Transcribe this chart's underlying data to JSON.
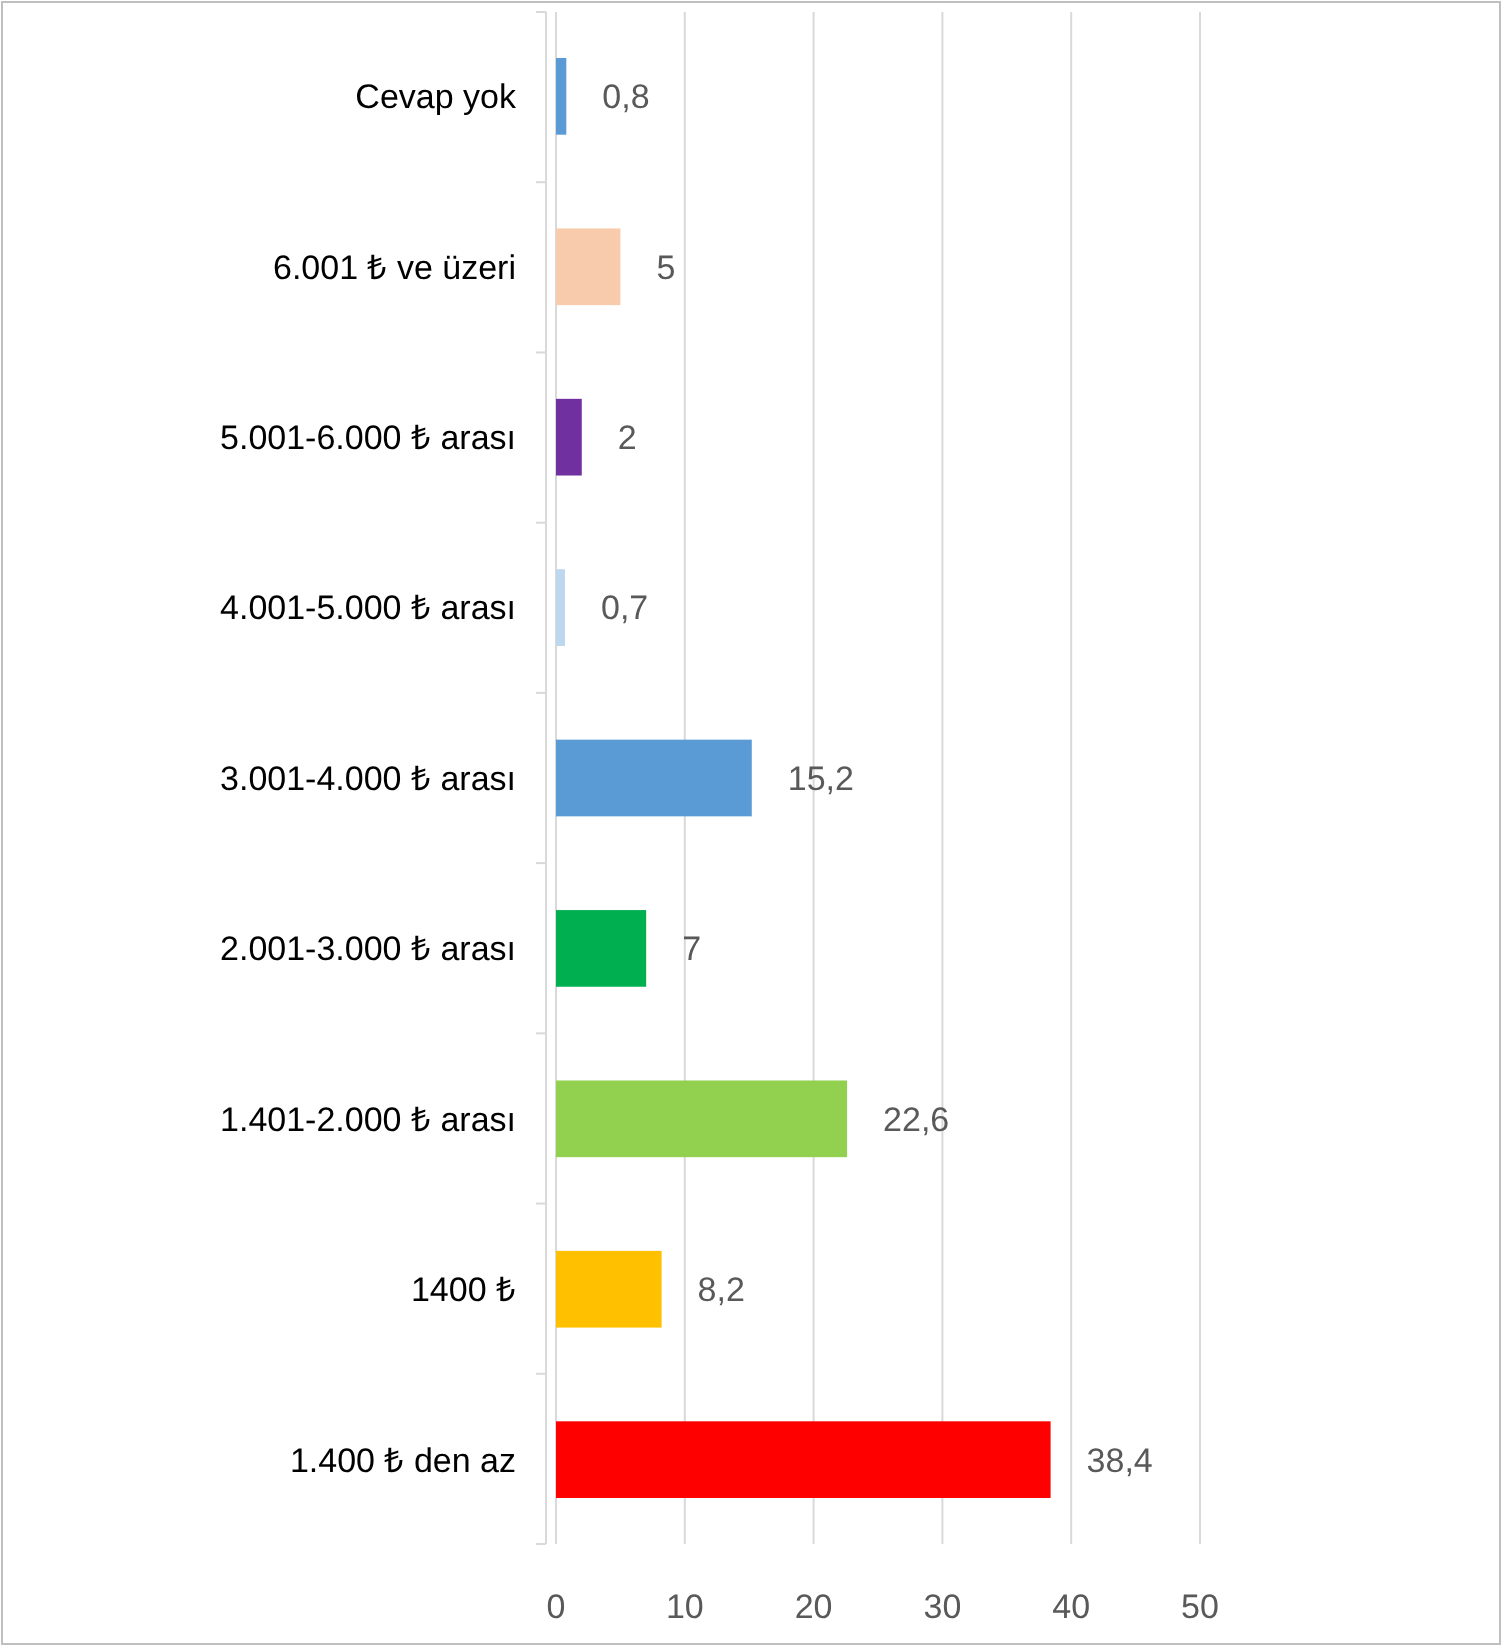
{
  "chart_data": {
    "type": "bar",
    "orientation": "horizontal",
    "categories": [
      "Cevap yok",
      "6.001 ₺ ve üzeri",
      "5.001-6.000 ₺ arası",
      "4.001-5.000 ₺ arası",
      "3.001-4.000 ₺ arası",
      "2.001-3.000 ₺ arası",
      "1.401-2.000 ₺ arası",
      "1400 ₺",
      "1.400 ₺ den az"
    ],
    "values": [
      0.8,
      5,
      2,
      0.7,
      15.2,
      7,
      22.6,
      8.2,
      38.4
    ],
    "colors": [
      "#5b9bd5",
      "#f8cbad",
      "#7030a0",
      "#bdd7ee",
      "#5b9bd5",
      "#00b050",
      "#92d050",
      "#ffc000",
      "#ff0000"
    ],
    "value_labels": [
      "0,8",
      "5",
      "2",
      "0,7",
      "15,2",
      "7",
      "22,6",
      "8,2",
      "38,4"
    ],
    "xlim": [
      0,
      50
    ],
    "xticks": [
      0,
      10,
      20,
      30,
      40,
      50
    ],
    "grid": "x"
  }
}
